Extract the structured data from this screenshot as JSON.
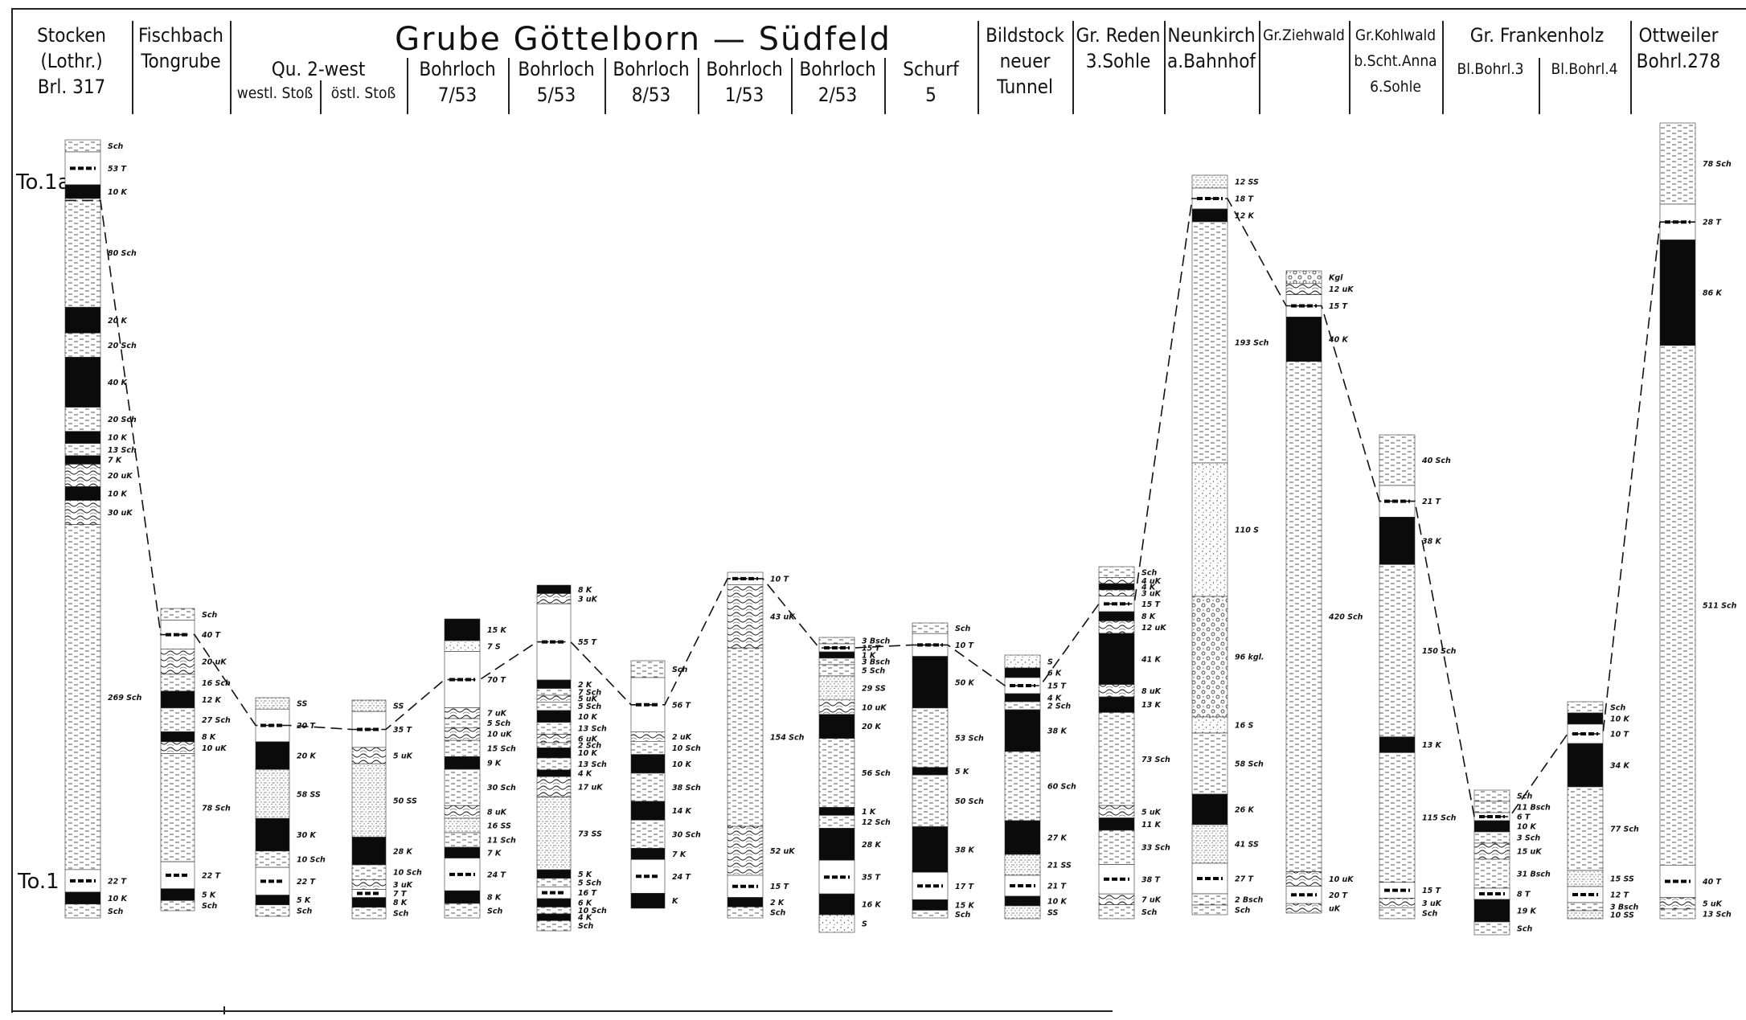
{
  "figure": {
    "title": "Grube Göttelborn — Südfeld",
    "ref_upper": "To.1a",
    "ref_lower": "To.1"
  },
  "headers": [
    {
      "id": "stocken",
      "lines": [
        "Stocken",
        "(Lothr.)",
        "Brl. 317"
      ]
    },
    {
      "id": "fischbach",
      "lines": [
        "Fischbach",
        "Tongrube"
      ]
    },
    {
      "id": "qu2west",
      "lines": [
        "Qu. 2-west"
      ]
    },
    {
      "id": "west-stoss",
      "lines": [
        "westl. Stoß"
      ]
    },
    {
      "id": "ost-stoss",
      "lines": [
        "östl. Stoß"
      ]
    },
    {
      "id": "bohr753",
      "lines": [
        "Bohrloch",
        "7/53"
      ]
    },
    {
      "id": "bohr553",
      "lines": [
        "Bohrloch",
        "5/53"
      ]
    },
    {
      "id": "bohr853",
      "lines": [
        "Bohrloch",
        "8/53"
      ]
    },
    {
      "id": "bohr153",
      "lines": [
        "Bohrloch",
        "1/53"
      ]
    },
    {
      "id": "bohr253",
      "lines": [
        "Bohrloch",
        "2/53"
      ]
    },
    {
      "id": "schurf5",
      "lines": [
        "Schurf",
        "5"
      ]
    },
    {
      "id": "bildstock",
      "lines": [
        "Bildstock",
        "neuer",
        "Tunnel"
      ]
    },
    {
      "id": "reden",
      "lines": [
        "Gr. Reden",
        "3.Sohle"
      ]
    },
    {
      "id": "neunkirch",
      "lines": [
        "Neunkirch",
        "a.Bahnhof"
      ]
    },
    {
      "id": "ziehwald",
      "lines": [
        "Gr.Ziehwald"
      ]
    },
    {
      "id": "kohlwald",
      "lines": [
        "Gr.Kohlwald",
        "b.Scht.Anna",
        "6.Sohle"
      ]
    },
    {
      "id": "frankenholz",
      "lines": [
        "Gr. Frankenholz"
      ]
    },
    {
      "id": "blbohr3",
      "lines": [
        "Bl.Bohrl.3"
      ]
    },
    {
      "id": "blbohr4",
      "lines": [
        "Bl.Bohrl.4"
      ]
    },
    {
      "id": "ottweiler",
      "lines": [
        "Ottweiler",
        "Bohrl.278"
      ]
    }
  ],
  "columns": [
    {
      "id": "stocken",
      "layers": [
        {
          "t": "Sch",
          "label": "Sch"
        },
        {
          "t": "T",
          "label": "53 T"
        },
        {
          "t": "K",
          "label": "10 K"
        },
        {
          "t": "Sch",
          "label": "80 Sch"
        },
        {
          "t": "K",
          "label": "20 K"
        },
        {
          "t": "Sch",
          "label": "20 Sch"
        },
        {
          "t": "K",
          "label": "40 K"
        },
        {
          "t": "Sch",
          "label": "20 Sch"
        },
        {
          "t": "K",
          "label": "10 K"
        },
        {
          "t": "Sch",
          "label": "13 Sch"
        },
        {
          "t": "K",
          "label": "7 K"
        },
        {
          "t": "uK",
          "label": "20 uK"
        },
        {
          "t": "K",
          "label": "10 K"
        },
        {
          "t": "uK",
          "label": "30 uK"
        },
        {
          "t": "Sch",
          "label": "269 Sch"
        },
        {
          "t": "T",
          "label": "22 T"
        },
        {
          "t": "K",
          "label": "10 K"
        },
        {
          "t": "Sch",
          "label": "Sch"
        }
      ]
    },
    {
      "id": "fischbach",
      "layers": [
        {
          "t": "Sch",
          "label": "Sch"
        },
        {
          "t": "T",
          "label": "40 T"
        },
        {
          "t": "uK",
          "label": "20 uK"
        },
        {
          "t": "Sch",
          "label": "16 Sch"
        },
        {
          "t": "K",
          "label": "12 K"
        },
        {
          "t": "Sch",
          "label": "27 Sch"
        },
        {
          "t": "K",
          "label": "8 K"
        },
        {
          "t": "uK",
          "label": "10 uK"
        },
        {
          "t": "Sch",
          "label": "78 Sch"
        },
        {
          "t": "T",
          "label": "22 T"
        },
        {
          "t": "K",
          "label": "5 K"
        },
        {
          "t": "Sch",
          "label": "Sch"
        }
      ]
    },
    {
      "id": "west-stoss",
      "layers": [
        {
          "t": "SS",
          "label": "SS"
        },
        {
          "t": "T",
          "label": "20 T"
        },
        {
          "t": "K",
          "label": "20 K"
        },
        {
          "t": "SS",
          "label": "58 SS"
        },
        {
          "t": "K",
          "label": "30 K"
        },
        {
          "t": "Sch",
          "label": "10 Sch"
        },
        {
          "t": "T",
          "label": "22 T"
        },
        {
          "t": "K",
          "label": "5 K"
        },
        {
          "t": "Sch",
          "label": "Sch"
        }
      ]
    },
    {
      "id": "ost-stoss",
      "layers": [
        {
          "t": "SS",
          "label": "SS"
        },
        {
          "t": "T",
          "label": "35 T"
        },
        {
          "t": "uK",
          "label": "5 uK"
        },
        {
          "t": "SS",
          "label": "50 SS"
        },
        {
          "t": "K",
          "label": "28 K"
        },
        {
          "t": "Sch",
          "label": "10 Sch"
        },
        {
          "t": "uK",
          "label": "3 uK"
        },
        {
          "t": "T",
          "label": "7 T"
        },
        {
          "t": "K",
          "label": "8 K"
        },
        {
          "t": "Sch",
          "label": "Sch"
        }
      ]
    },
    {
      "id": "bohr753",
      "layers": [
        {
          "t": "K",
          "label": "15 K"
        },
        {
          "t": "S",
          "label": "7 S"
        },
        {
          "t": "T",
          "label": "70 T"
        },
        {
          "t": "uK",
          "label": "7 uK"
        },
        {
          "t": "Sch",
          "label": "5 Sch"
        },
        {
          "t": "uK",
          "label": "10 uK"
        },
        {
          "t": "Sch",
          "label": "15 Sch"
        },
        {
          "t": "K",
          "label": "9 K"
        },
        {
          "t": "Sch",
          "label": "30 Sch"
        },
        {
          "t": "uK",
          "label": "8 uK"
        },
        {
          "t": "SS",
          "label": "16 SS"
        },
        {
          "t": "Sch",
          "label": "11 Sch"
        },
        {
          "t": "K",
          "label": "7 K"
        },
        {
          "t": "T",
          "label": "24 T"
        },
        {
          "t": "K",
          "label": "8 K"
        },
        {
          "t": "Sch",
          "label": "Sch"
        }
      ]
    },
    {
      "id": "bohr553",
      "layers": [
        {
          "t": "K",
          "label": "8 K"
        },
        {
          "t": "uK",
          "label": "3 uK"
        },
        {
          "t": "T",
          "label": "55 T"
        },
        {
          "t": "K",
          "label": "2 K"
        },
        {
          "t": "Sch",
          "label": "7 Sch"
        },
        {
          "t": "uK",
          "label": "5 uK"
        },
        {
          "t": "Sch",
          "label": "5 Sch"
        },
        {
          "t": "K",
          "label": "10 K"
        },
        {
          "t": "Sch",
          "label": "13 Sch"
        },
        {
          "t": "uK",
          "label": "6 uK"
        },
        {
          "t": "Sch",
          "label": "2 Sch"
        },
        {
          "t": "K",
          "label": "10 K"
        },
        {
          "t": "Sch",
          "label": "13 Sch"
        },
        {
          "t": "K",
          "label": "4 K"
        },
        {
          "t": "uK",
          "label": "17 uK"
        },
        {
          "t": "SS",
          "label": "73 SS"
        },
        {
          "t": "K",
          "label": "5 K"
        },
        {
          "t": "Sch",
          "label": "5 Sch"
        },
        {
          "t": "T",
          "label": "16 T"
        },
        {
          "t": "K",
          "label": "6 K"
        },
        {
          "t": "Sch",
          "label": "10 Sch"
        },
        {
          "t": "K",
          "label": "4 K"
        },
        {
          "t": "Sch",
          "label": "Sch"
        }
      ]
    },
    {
      "id": "bohr853",
      "layers": [
        {
          "t": "Sch",
          "label": "Sch"
        },
        {
          "t": "T",
          "label": "56 T"
        },
        {
          "t": "uK",
          "label": "2 uK"
        },
        {
          "t": "Sch",
          "label": "10 Sch"
        },
        {
          "t": "K",
          "label": "10 K"
        },
        {
          "t": "Sch",
          "label": "38 Sch"
        },
        {
          "t": "K",
          "label": "14 K"
        },
        {
          "t": "Sch",
          "label": "30 Sch"
        },
        {
          "t": "K",
          "label": "7 K"
        },
        {
          "t": "T",
          "label": "24 T"
        },
        {
          "t": "K",
          "label": "K"
        }
      ]
    },
    {
      "id": "bohr153",
      "layers": [
        {
          "t": "T",
          "label": "10 T"
        },
        {
          "t": "uK",
          "label": "43 uK"
        },
        {
          "t": "Sch",
          "label": "154 Sch"
        },
        {
          "t": "uK",
          "label": "52 uK"
        },
        {
          "t": "T",
          "label": "15 T"
        },
        {
          "t": "K",
          "label": "2 K"
        },
        {
          "t": "Sch",
          "label": "Sch"
        }
      ]
    },
    {
      "id": "bohr253",
      "layers": [
        {
          "t": "Sch",
          "label": "3 Bsch"
        },
        {
          "t": "T",
          "label": "15 T"
        },
        {
          "t": "K",
          "label": "1 K"
        },
        {
          "t": "Sch",
          "label": "3 Bsch"
        },
        {
          "t": "Sch",
          "label": "5 Sch"
        },
        {
          "t": "SS",
          "label": "29 SS"
        },
        {
          "t": "uK",
          "label": "10 uK"
        },
        {
          "t": "K",
          "label": "20 K"
        },
        {
          "t": "Sch",
          "label": "56 Sch"
        },
        {
          "t": "K",
          "label": "1 K"
        },
        {
          "t": "Sch",
          "label": "12 Sch"
        },
        {
          "t": "K",
          "label": "28 K"
        },
        {
          "t": "T",
          "label": "35 T"
        },
        {
          "t": "K",
          "label": "16 K"
        },
        {
          "t": "S",
          "label": "S"
        }
      ]
    },
    {
      "id": "schurf5",
      "layers": [
        {
          "t": "Sch",
          "label": "Sch"
        },
        {
          "t": "T",
          "label": "10 T"
        },
        {
          "t": "K",
          "label": "50 K"
        },
        {
          "t": "Sch",
          "label": "53 Sch"
        },
        {
          "t": "K",
          "label": "5 K"
        },
        {
          "t": "Sch",
          "label": "50 Sch"
        },
        {
          "t": "K",
          "label": "38 K"
        },
        {
          "t": "T",
          "label": "17 T"
        },
        {
          "t": "K",
          "label": "15 K"
        },
        {
          "t": "Sch",
          "label": "Sch"
        }
      ]
    },
    {
      "id": "bildstock",
      "layers": [
        {
          "t": "S",
          "label": "S"
        },
        {
          "t": "K",
          "label": "6 K"
        },
        {
          "t": "T",
          "label": "15 T"
        },
        {
          "t": "K",
          "label": "4 K"
        },
        {
          "t": "Sch",
          "label": "2 Sch"
        },
        {
          "t": "K",
          "label": "38 K"
        },
        {
          "t": "Sch",
          "label": "60 Sch"
        },
        {
          "t": "K",
          "label": "27 K"
        },
        {
          "t": "SS",
          "label": "21 SS"
        },
        {
          "t": "T",
          "label": "21 T"
        },
        {
          "t": "K",
          "label": "10 K"
        },
        {
          "t": "SS",
          "label": "SS"
        }
      ]
    },
    {
      "id": "reden",
      "layers": [
        {
          "t": "Sch",
          "label": "Sch"
        },
        {
          "t": "uK",
          "label": "4 uK"
        },
        {
          "t": "K",
          "label": "4 K"
        },
        {
          "t": "uK",
          "label": "3 uK"
        },
        {
          "t": "T",
          "label": "15 T"
        },
        {
          "t": "K",
          "label": "8 K"
        },
        {
          "t": "uK",
          "label": "12 uK"
        },
        {
          "t": "K",
          "label": "41 K"
        },
        {
          "t": "uK",
          "label": "8 uK"
        },
        {
          "t": "K",
          "label": "13 K"
        },
        {
          "t": "Sch",
          "label": "73 Sch"
        },
        {
          "t": "uK",
          "label": "5 uK"
        },
        {
          "t": "K",
          "label": "11 K"
        },
        {
          "t": "Sch",
          "label": "33 Sch"
        },
        {
          "t": "T",
          "label": "38 T"
        },
        {
          "t": "uK",
          "label": "7 uK"
        },
        {
          "t": "Sch",
          "label": "Sch"
        }
      ]
    },
    {
      "id": "neunkirch",
      "layers": [
        {
          "t": "SS",
          "label": "12 SS"
        },
        {
          "t": "T",
          "label": "18 T"
        },
        {
          "t": "K",
          "label": "12 K"
        },
        {
          "t": "Sch",
          "label": "193 Sch"
        },
        {
          "t": "S",
          "label": "110 S"
        },
        {
          "t": "kgl",
          "label": "96 kgl."
        },
        {
          "t": "S",
          "label": "16 S"
        },
        {
          "t": "Sch",
          "label": "58 Sch"
        },
        {
          "t": "K",
          "label": "26 K"
        },
        {
          "t": "SS",
          "label": "41 SS"
        },
        {
          "t": "T",
          "label": "27 T"
        },
        {
          "t": "Sch",
          "label": "2 Bsch"
        },
        {
          "t": "Sch",
          "label": "Sch"
        }
      ]
    },
    {
      "id": "ziehwald",
      "layers": [
        {
          "t": "kgl",
          "label": "Kgl"
        },
        {
          "t": "uK",
          "label": "12 uK"
        },
        {
          "t": "T",
          "label": "15 T"
        },
        {
          "t": "K",
          "label": "40 K"
        },
        {
          "t": "Sch",
          "label": "420 Sch"
        },
        {
          "t": "uK",
          "label": "10 uK"
        },
        {
          "t": "T",
          "label": "20 T"
        },
        {
          "t": "uK",
          "label": "uK"
        }
      ]
    },
    {
      "id": "kohlwald",
      "layers": [
        {
          "t": "Sch",
          "label": "40 Sch"
        },
        {
          "t": "T",
          "label": "21 T"
        },
        {
          "t": "K",
          "label": "38 K"
        },
        {
          "t": "Sch",
          "label": "150 Sch"
        },
        {
          "t": "K",
          "label": "13 K"
        },
        {
          "t": "Sch",
          "label": "115 Sch"
        },
        {
          "t": "T",
          "label": "15 T"
        },
        {
          "t": "uK",
          "label": "3 uK"
        },
        {
          "t": "Sch",
          "label": "Sch"
        }
      ]
    },
    {
      "id": "blbohr3",
      "layers": [
        {
          "t": "Sch",
          "label": "Sch"
        },
        {
          "t": "Sch",
          "label": "11 Bsch"
        },
        {
          "t": "T",
          "label": "6 T"
        },
        {
          "t": "K",
          "label": "10 K"
        },
        {
          "t": "Sch",
          "label": "3 Sch"
        },
        {
          "t": "uK",
          "label": "15 uK"
        },
        {
          "t": "Sch",
          "label": "31 Bsch"
        },
        {
          "t": "T",
          "label": "8 T"
        },
        {
          "t": "K",
          "label": "19 K"
        },
        {
          "t": "Sch",
          "label": "Sch"
        }
      ]
    },
    {
      "id": "blbohr4",
      "layers": [
        {
          "t": "Sch",
          "label": "Sch"
        },
        {
          "t": "K",
          "label": "10 K"
        },
        {
          "t": "T",
          "label": "10 T"
        },
        {
          "t": "K",
          "label": "34 K"
        },
        {
          "t": "Sch",
          "label": "77 Sch"
        },
        {
          "t": "SS",
          "label": "15 SS"
        },
        {
          "t": "T",
          "label": "12 T"
        },
        {
          "t": "Sch",
          "label": "3 Bsch"
        },
        {
          "t": "SS",
          "label": "10 SS"
        }
      ]
    },
    {
      "id": "ottweiler",
      "layers": [
        {
          "t": "Sch",
          "label": "78 Sch"
        },
        {
          "t": "T",
          "label": "28 T"
        },
        {
          "t": "K",
          "label": "86 K"
        },
        {
          "t": "Sch",
          "label": "511 Sch"
        },
        {
          "t": "T",
          "label": "40 T"
        },
        {
          "t": "uK",
          "label": "5 uK"
        },
        {
          "t": "Sch",
          "label": "13 Sch"
        }
      ]
    }
  ]
}
